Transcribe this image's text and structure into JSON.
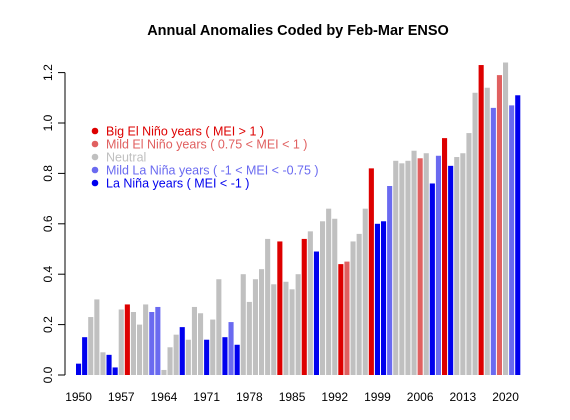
{
  "chart_data": {
    "type": "bar",
    "title": "Annual Anomalies Coded by Feb-Mar ENSO",
    "xlabel": "",
    "ylabel": "",
    "ylim": [
      0,
      1.25
    ],
    "y_ticks": [
      "0.0",
      "0.2",
      "0.4",
      "0.6",
      "0.8",
      "1.0",
      "1.2"
    ],
    "x_tick_labels": [
      "1950",
      "1957",
      "1964",
      "1971",
      "1978",
      "1985",
      "1992",
      "1999",
      "2006",
      "2013",
      "2020"
    ],
    "grid": false,
    "legend_position": "upper-left",
    "colors": {
      "big_el_nino": "#dd0000",
      "mild_el_nino": "#e06060",
      "neutral": "#c0c0c0",
      "mild_la_nina": "#6a6af0",
      "la_nina": "#0000ee"
    },
    "legend": [
      {
        "key": "big_el_nino",
        "label": "Big El Niño years ( MEI > 1 )"
      },
      {
        "key": "mild_el_nino",
        "label": "Mild El Niño years ( 0.75 < MEI < 1 )"
      },
      {
        "key": "neutral",
        "label": "Neutral"
      },
      {
        "key": "mild_la_nina",
        "label": "Mild La Niña years ( -1 < MEI < -0.75 )"
      },
      {
        "key": "la_nina",
        "label": "La Niña years ( MEI < -1 )"
      }
    ],
    "years": [
      1950,
      1951,
      1952,
      1953,
      1954,
      1955,
      1956,
      1957,
      1958,
      1959,
      1960,
      1961,
      1962,
      1963,
      1964,
      1965,
      1966,
      1967,
      1968,
      1969,
      1970,
      1971,
      1972,
      1973,
      1974,
      1975,
      1976,
      1977,
      1978,
      1979,
      1980,
      1981,
      1982,
      1983,
      1984,
      1985,
      1986,
      1987,
      1988,
      1989,
      1990,
      1991,
      1992,
      1993,
      1994,
      1995,
      1996,
      1997,
      1998,
      1999,
      2000,
      2001,
      2002,
      2003,
      2004,
      2005,
      2006,
      2007,
      2008,
      2009,
      2010,
      2011,
      2012,
      2013,
      2014,
      2015,
      2016,
      2017,
      2018,
      2019,
      2020,
      2021
    ],
    "values": [
      0.045,
      0.15,
      0.23,
      0.3,
      0.09,
      0.08,
      0.03,
      0.26,
      0.28,
      0.25,
      0.2,
      0.28,
      0.25,
      0.27,
      0.02,
      0.11,
      0.16,
      0.19,
      0.14,
      0.27,
      0.245,
      0.14,
      0.22,
      0.38,
      0.15,
      0.21,
      0.12,
      0.4,
      0.29,
      0.38,
      0.42,
      0.54,
      0.36,
      0.53,
      0.37,
      0.34,
      0.4,
      0.54,
      0.57,
      0.49,
      0.61,
      0.66,
      0.62,
      0.44,
      0.45,
      0.53,
      0.56,
      0.66,
      0.82,
      0.6,
      0.61,
      0.75,
      0.85,
      0.84,
      0.85,
      0.89,
      0.86,
      0.88,
      0.76,
      0.87,
      0.94,
      0.83,
      0.865,
      0.88,
      0.96,
      1.12,
      1.23,
      1.14,
      1.06,
      1.19,
      1.24,
      1.07
    ],
    "categories": [
      "la_nina",
      "la_nina",
      "neutral",
      "neutral",
      "neutral",
      "la_nina",
      "la_nina",
      "neutral",
      "big_el_nino",
      "neutral",
      "neutral",
      "neutral",
      "mild_la_nina",
      "mild_la_nina",
      "neutral",
      "neutral",
      "neutral",
      "la_nina",
      "neutral",
      "neutral",
      "neutral",
      "la_nina",
      "neutral",
      "neutral",
      "la_nina",
      "mild_la_nina",
      "la_nina",
      "neutral",
      "neutral",
      "neutral",
      "neutral",
      "neutral",
      "neutral",
      "big_el_nino",
      "neutral",
      "neutral",
      "neutral",
      "big_el_nino",
      "neutral",
      "la_nina",
      "neutral",
      "neutral",
      "neutral",
      "big_el_nino",
      "mild_el_nino",
      "neutral",
      "neutral",
      "neutral",
      "big_el_nino",
      "la_nina",
      "la_nina",
      "mild_la_nina",
      "neutral",
      "neutral",
      "neutral",
      "neutral",
      "mild_el_nino",
      "neutral",
      "la_nina",
      "mild_la_nina",
      "big_el_nino",
      "la_nina",
      "neutral",
      "neutral",
      "neutral",
      "neutral",
      "big_el_nino",
      "neutral",
      "mild_la_nina",
      "mild_el_nino",
      "neutral",
      "mild_la_nina"
    ],
    "last_bar": {
      "year": 2022,
      "value": 1.11,
      "category": "la_nina"
    }
  }
}
